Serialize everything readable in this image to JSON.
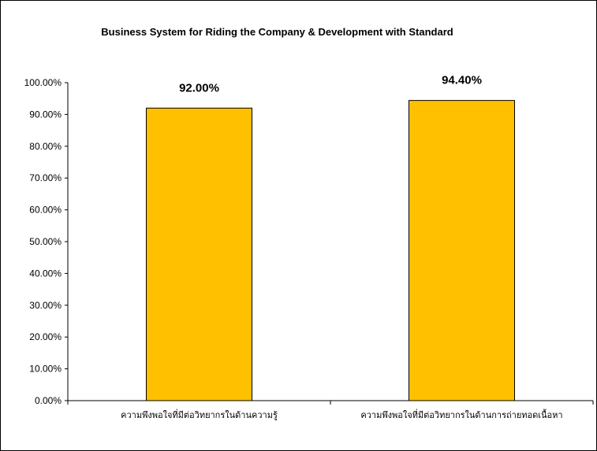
{
  "chart_data": {
    "type": "bar",
    "title": "Business System for Riding the Company & Development with Standard",
    "categories": [
      "ความพึงพอใจที่มีต่อวิทยากรในด้านความรู้",
      "ความพึงพอใจที่มีต่อวิทยากรในด้านการถ่ายทอดเนื้อหา"
    ],
    "values": [
      92.0,
      94.4
    ],
    "data_labels": [
      "92.00%",
      "94.40%"
    ],
    "ylim": [
      0,
      100
    ],
    "yticks": [
      "0.00%",
      "10.00%",
      "20.00%",
      "30.00%",
      "40.00%",
      "50.00%",
      "60.00%",
      "70.00%",
      "80.00%",
      "90.00%",
      "100.00%"
    ],
    "grid": false,
    "legend": "none",
    "bar_color": "#FFC000"
  }
}
